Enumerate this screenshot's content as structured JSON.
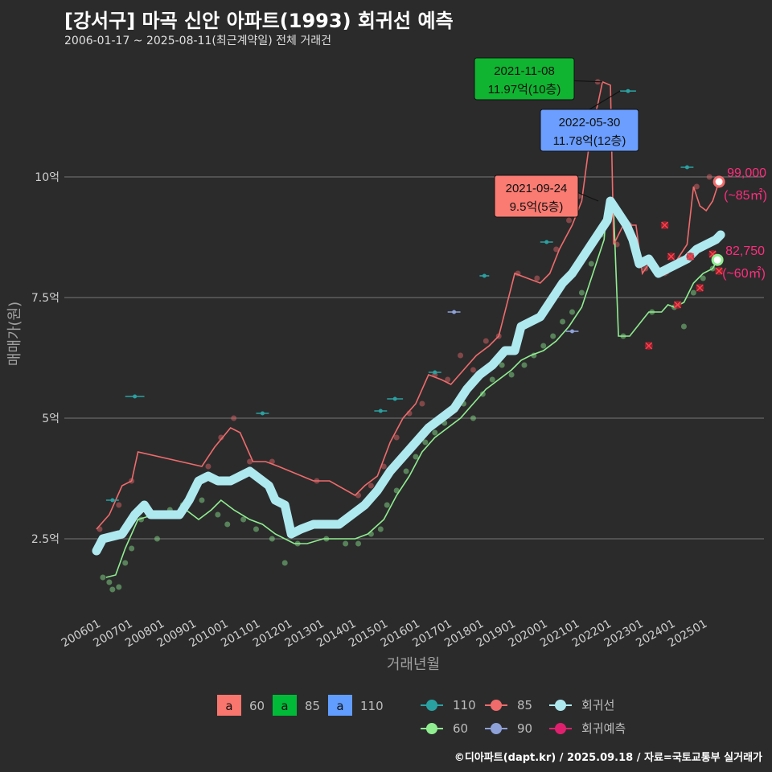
{
  "title": "[강서구] 마곡 신안 아파트(1993) 회귀선 예측",
  "subtitle": "2006-01-17 ~ 2025-08-11(최근계약일) 전체 거래건",
  "caption": "©디아파트(dapt.kr) / 2025.09.18 / 자료=국토교통부 실거래가",
  "chart_data": {
    "type": "scatter",
    "xlabel": "거래년월",
    "ylabel": "매매가(원)",
    "xlim": [
      2006.0,
      2025.9
    ],
    "ylim": [
      1.0,
      12.5
    ],
    "y_ticks": [
      {
        "v": 2.5,
        "label": "2.5억"
      },
      {
        "v": 5,
        "label": "5억"
      },
      {
        "v": 7.5,
        "label": "7.5억"
      },
      {
        "v": 10,
        "label": "10억"
      }
    ],
    "x_ticks": [
      {
        "v": 2006.0,
        "label": "200601"
      },
      {
        "v": 2007.0,
        "label": "200701"
      },
      {
        "v": 2008.0,
        "label": "200801"
      },
      {
        "v": 2009.0,
        "label": "200901"
      },
      {
        "v": 2010.0,
        "label": "201001"
      },
      {
        "v": 2011.0,
        "label": "201101"
      },
      {
        "v": 2012.0,
        "label": "201201"
      },
      {
        "v": 2013.0,
        "label": "201301"
      },
      {
        "v": 2014.0,
        "label": "201401"
      },
      {
        "v": 2015.0,
        "label": "201501"
      },
      {
        "v": 2016.0,
        "label": "201601"
      },
      {
        "v": 2017.0,
        "label": "201701"
      },
      {
        "v": 2018.0,
        "label": "201801"
      },
      {
        "v": 2019.0,
        "label": "201901"
      },
      {
        "v": 2020.0,
        "label": "202001"
      },
      {
        "v": 2021.0,
        "label": "202101"
      },
      {
        "v": 2022.0,
        "label": "202201"
      },
      {
        "v": 2023.0,
        "label": "202301"
      },
      {
        "v": 2024.0,
        "label": "202401"
      },
      {
        "v": 2025.0,
        "label": "202501"
      }
    ],
    "series": [
      {
        "name": "60",
        "color": "#90ee90",
        "type": "line",
        "points": [
          [
            2006.3,
            1.7
          ],
          [
            2006.6,
            1.75
          ],
          [
            2006.9,
            2.3
          ],
          [
            2007.3,
            2.9
          ],
          [
            2007.8,
            3.0
          ],
          [
            2008.3,
            3.0
          ],
          [
            2008.8,
            3.1
          ],
          [
            2009.2,
            2.9
          ],
          [
            2009.6,
            3.1
          ],
          [
            2009.9,
            3.3
          ],
          [
            2010.3,
            3.1
          ],
          [
            2010.8,
            2.9
          ],
          [
            2011.2,
            2.8
          ],
          [
            2011.6,
            2.6
          ],
          [
            2011.9,
            2.5
          ],
          [
            2012.2,
            2.4
          ],
          [
            2012.6,
            2.4
          ],
          [
            2013.1,
            2.5
          ],
          [
            2013.6,
            2.5
          ],
          [
            2014.1,
            2.5
          ],
          [
            2014.5,
            2.6
          ],
          [
            2015.0,
            2.9
          ],
          [
            2015.4,
            3.4
          ],
          [
            2015.8,
            3.8
          ],
          [
            2016.2,
            4.3
          ],
          [
            2016.6,
            4.6
          ],
          [
            2017.0,
            4.8
          ],
          [
            2017.4,
            5.0
          ],
          [
            2017.8,
            5.3
          ],
          [
            2018.2,
            5.6
          ],
          [
            2018.6,
            5.8
          ],
          [
            2019.0,
            6.0
          ],
          [
            2019.3,
            6.2
          ],
          [
            2019.6,
            6.3
          ],
          [
            2020.0,
            6.4
          ],
          [
            2020.4,
            6.6
          ],
          [
            2020.8,
            6.9
          ],
          [
            2021.2,
            7.3
          ],
          [
            2021.6,
            8.1
          ],
          [
            2021.9,
            8.7
          ],
          [
            2022.0,
            9.5
          ],
          [
            2022.2,
            9.3
          ],
          [
            2022.35,
            6.7
          ],
          [
            2022.7,
            6.7
          ],
          [
            2023.3,
            7.2
          ],
          [
            2023.7,
            7.2
          ],
          [
            2023.9,
            7.35
          ],
          [
            2024.1,
            7.3
          ],
          [
            2024.4,
            7.4
          ],
          [
            2024.7,
            7.8
          ],
          [
            2025.0,
            8.0
          ],
          [
            2025.3,
            8.1
          ],
          [
            2025.45,
            8.28
          ]
        ]
      },
      {
        "name": "85",
        "color": "#f06b6b",
        "type": "line",
        "points": [
          [
            2006.0,
            2.7
          ],
          [
            2006.4,
            3.0
          ],
          [
            2006.8,
            3.6
          ],
          [
            2007.1,
            3.7
          ],
          [
            2007.3,
            4.3
          ],
          [
            2009.3,
            4.0
          ],
          [
            2009.7,
            4.4
          ],
          [
            2010.2,
            4.8
          ],
          [
            2010.5,
            4.7
          ],
          [
            2010.9,
            4.1
          ],
          [
            2011.3,
            4.1
          ],
          [
            2011.7,
            4.0
          ],
          [
            2012.8,
            3.7
          ],
          [
            2013.3,
            3.7
          ],
          [
            2014.1,
            3.4
          ],
          [
            2014.4,
            3.6
          ],
          [
            2014.8,
            3.8
          ],
          [
            2015.2,
            4.5
          ],
          [
            2015.6,
            5.0
          ],
          [
            2016.0,
            5.3
          ],
          [
            2016.4,
            5.9
          ],
          [
            2016.8,
            5.8
          ],
          [
            2017.1,
            5.7
          ],
          [
            2017.5,
            6.0
          ],
          [
            2017.9,
            6.3
          ],
          [
            2018.3,
            6.5
          ],
          [
            2018.6,
            6.7
          ],
          [
            2019.1,
            8.0
          ],
          [
            2019.5,
            7.9
          ],
          [
            2019.9,
            7.8
          ],
          [
            2020.2,
            8.0
          ],
          [
            2020.5,
            8.5
          ],
          [
            2020.9,
            9.0
          ],
          [
            2021.2,
            9.5
          ],
          [
            2021.5,
            11.0
          ],
          [
            2021.7,
            11.5
          ],
          [
            2021.85,
            11.97
          ],
          [
            2022.1,
            11.9
          ],
          [
            2022.2,
            8.6
          ],
          [
            2022.5,
            9.0
          ],
          [
            2022.9,
            9.0
          ],
          [
            2023.1,
            8.0
          ],
          [
            2023.3,
            8.2
          ],
          [
            2023.6,
            8.0
          ],
          [
            2023.9,
            8.0
          ],
          [
            2024.2,
            8.3
          ],
          [
            2024.5,
            8.6
          ],
          [
            2024.7,
            9.8
          ],
          [
            2024.9,
            9.4
          ],
          [
            2025.1,
            9.3
          ],
          [
            2025.3,
            9.5
          ],
          [
            2025.5,
            9.9
          ]
        ]
      },
      {
        "name": "110",
        "color": "#2aa1a1",
        "type": "step",
        "segments": [
          [
            2006.3,
            3.3,
            2006.7,
            3.3
          ],
          [
            2006.9,
            5.45,
            2007.5,
            5.45
          ],
          [
            2011.0,
            5.1,
            2011.4,
            5.1
          ],
          [
            2014.7,
            5.15,
            2015.1,
            5.15
          ],
          [
            2015.1,
            5.4,
            2015.6,
            5.4
          ],
          [
            2016.4,
            5.95,
            2016.8,
            5.95
          ],
          [
            2018.0,
            7.95,
            2018.3,
            7.95
          ],
          [
            2019.9,
            8.65,
            2020.3,
            8.65
          ],
          [
            2022.4,
            11.78,
            2022.9,
            11.78
          ],
          [
            2024.3,
            10.2,
            2024.7,
            10.2
          ]
        ]
      },
      {
        "name": "90",
        "color": "#8ea1d8",
        "type": "step",
        "segments": [
          [
            2017.0,
            7.2,
            2017.4,
            7.2
          ],
          [
            2020.7,
            6.8,
            2021.1,
            6.8
          ]
        ]
      }
    ],
    "regression": {
      "name": "회귀선",
      "color": "#aee9ef",
      "points": [
        [
          2006.0,
          2.25
        ],
        [
          2006.2,
          2.5
        ],
        [
          2006.8,
          2.6
        ],
        [
          2007.2,
          3.0
        ],
        [
          2007.5,
          3.2
        ],
        [
          2007.7,
          3.0
        ],
        [
          2008.2,
          3.0
        ],
        [
          2008.6,
          3.0
        ],
        [
          2008.9,
          3.3
        ],
        [
          2009.2,
          3.7
        ],
        [
          2009.5,
          3.8
        ],
        [
          2009.8,
          3.7
        ],
        [
          2010.2,
          3.7
        ],
        [
          2010.5,
          3.8
        ],
        [
          2010.8,
          3.9
        ],
        [
          2011.1,
          3.75
        ],
        [
          2011.4,
          3.6
        ],
        [
          2011.6,
          3.3
        ],
        [
          2011.9,
          3.2
        ],
        [
          2012.1,
          2.6
        ],
        [
          2012.4,
          2.7
        ],
        [
          2012.8,
          2.8
        ],
        [
          2013.2,
          2.8
        ],
        [
          2013.6,
          2.8
        ],
        [
          2014.0,
          3.0
        ],
        [
          2014.4,
          3.2
        ],
        [
          2014.8,
          3.5
        ],
        [
          2015.2,
          3.9
        ],
        [
          2015.6,
          4.2
        ],
        [
          2016.0,
          4.5
        ],
        [
          2016.4,
          4.8
        ],
        [
          2016.8,
          5.0
        ],
        [
          2017.2,
          5.2
        ],
        [
          2017.6,
          5.6
        ],
        [
          2018.0,
          5.9
        ],
        [
          2018.4,
          6.1
        ],
        [
          2018.8,
          6.4
        ],
        [
          2019.1,
          6.4
        ],
        [
          2019.3,
          6.9
        ],
        [
          2019.6,
          7.0
        ],
        [
          2019.9,
          7.1
        ],
        [
          2020.2,
          7.4
        ],
        [
          2020.6,
          7.8
        ],
        [
          2020.9,
          8.0
        ],
        [
          2021.2,
          8.3
        ],
        [
          2021.5,
          8.6
        ],
        [
          2021.8,
          8.9
        ],
        [
          2022.0,
          9.1
        ],
        [
          2022.1,
          9.5
        ],
        [
          2022.3,
          9.3
        ],
        [
          2022.6,
          9.0
        ],
        [
          2022.8,
          8.7
        ],
        [
          2023.0,
          8.2
        ],
        [
          2023.3,
          8.3
        ],
        [
          2023.6,
          8.0
        ],
        [
          2023.9,
          8.1
        ],
        [
          2024.2,
          8.2
        ],
        [
          2024.5,
          8.3
        ],
        [
          2024.8,
          8.5
        ],
        [
          2025.1,
          8.6
        ],
        [
          2025.4,
          8.7
        ],
        [
          2025.55,
          8.8
        ]
      ]
    },
    "scatter_points_60": [
      [
        2006.2,
        1.7
      ],
      [
        2006.4,
        1.6
      ],
      [
        2006.5,
        1.45
      ],
      [
        2006.7,
        1.5
      ],
      [
        2006.9,
        2.0
      ],
      [
        2007.1,
        2.3
      ],
      [
        2007.4,
        2.9
      ],
      [
        2007.9,
        2.5
      ],
      [
        2008.3,
        3.1
      ],
      [
        2008.7,
        3.2
      ],
      [
        2009.3,
        3.3
      ],
      [
        2009.8,
        3.0
      ],
      [
        2010.1,
        2.8
      ],
      [
        2010.6,
        2.9
      ],
      [
        2011.0,
        2.7
      ],
      [
        2011.5,
        2.5
      ],
      [
        2011.9,
        2.0
      ],
      [
        2012.3,
        2.4
      ],
      [
        2013.2,
        2.5
      ],
      [
        2013.8,
        2.4
      ],
      [
        2014.2,
        2.4
      ],
      [
        2014.6,
        2.6
      ],
      [
        2014.9,
        2.7
      ],
      [
        2015.1,
        3.2
      ],
      [
        2015.4,
        3.5
      ],
      [
        2015.7,
        3.9
      ],
      [
        2016.0,
        4.2
      ],
      [
        2016.3,
        4.5
      ],
      [
        2016.6,
        4.7
      ],
      [
        2016.9,
        4.9
      ],
      [
        2017.2,
        5.2
      ],
      [
        2017.5,
        5.3
      ],
      [
        2017.8,
        5.0
      ],
      [
        2018.1,
        5.5
      ],
      [
        2018.4,
        5.8
      ],
      [
        2018.7,
        6.1
      ],
      [
        2019.0,
        5.9
      ],
      [
        2019.4,
        6.1
      ],
      [
        2019.7,
        6.3
      ],
      [
        2020.0,
        6.5
      ],
      [
        2020.3,
        6.7
      ],
      [
        2020.6,
        7.0
      ],
      [
        2020.9,
        7.2
      ],
      [
        2021.2,
        7.6
      ],
      [
        2021.5,
        8.2
      ],
      [
        2021.8,
        8.8
      ],
      [
        2022.2,
        9.3
      ],
      [
        2022.5,
        6.7
      ],
      [
        2023.4,
        7.2
      ],
      [
        2024.1,
        7.3
      ],
      [
        2024.4,
        6.9
      ],
      [
        2024.7,
        7.6
      ],
      [
        2025.0,
        7.9
      ],
      [
        2025.3,
        8.1
      ]
    ],
    "scatter_points_85": [
      [
        2006.1,
        2.7
      ],
      [
        2006.7,
        3.2
      ],
      [
        2007.1,
        3.7
      ],
      [
        2009.5,
        4.0
      ],
      [
        2009.9,
        4.6
      ],
      [
        2010.3,
        5.0
      ],
      [
        2010.8,
        4.1
      ],
      [
        2011.5,
        4.1
      ],
      [
        2012.9,
        3.7
      ],
      [
        2014.2,
        3.4
      ],
      [
        2014.6,
        3.6
      ],
      [
        2015.0,
        4.0
      ],
      [
        2015.4,
        4.6
      ],
      [
        2015.8,
        5.1
      ],
      [
        2016.2,
        5.3
      ],
      [
        2016.6,
        5.9
      ],
      [
        2017.0,
        5.8
      ],
      [
        2017.4,
        6.3
      ],
      [
        2017.8,
        6.0
      ],
      [
        2018.2,
        6.6
      ],
      [
        2018.6,
        6.7
      ],
      [
        2019.2,
        8.0
      ],
      [
        2019.8,
        7.9
      ],
      [
        2020.4,
        8.5
      ],
      [
        2020.8,
        9.1
      ],
      [
        2021.1,
        9.6
      ],
      [
        2021.4,
        11.0
      ],
      [
        2021.7,
        11.97
      ],
      [
        2022.3,
        8.6
      ],
      [
        2022.7,
        9.0
      ],
      [
        2023.2,
        8.1
      ],
      [
        2023.8,
        8.0
      ],
      [
        2024.3,
        8.3
      ],
      [
        2024.8,
        9.8
      ],
      [
        2025.2,
        10.0
      ],
      [
        2025.5,
        9.9
      ]
    ],
    "forecast_points": [
      [
        2023.3,
        6.5
      ],
      [
        2023.8,
        9.0
      ],
      [
        2024.0,
        8.35
      ],
      [
        2024.2,
        7.35
      ],
      [
        2024.6,
        8.35
      ],
      [
        2024.9,
        7.7
      ],
      [
        2025.3,
        8.4
      ],
      [
        2025.5,
        8.05
      ]
    ],
    "annotations": [
      {
        "date": "2021-11-08",
        "price": "11.97억(10층)",
        "x": 2021.85,
        "y": 11.97,
        "color": "#10b431"
      },
      {
        "date": "2022-05-30",
        "price": "11.78억(12층)",
        "x": 2022.4,
        "y": 11.78,
        "color": "#6b9eff"
      },
      {
        "date": "2021-09-24",
        "price": "9.5억(5층)",
        "x": 2021.72,
        "y": 9.5,
        "color": "#f97b72"
      }
    ],
    "end_labels": [
      {
        "value": "99,000",
        "area": "(~85㎡)",
        "x": 2025.5,
        "y": 9.9,
        "color": "#f06b6b"
      },
      {
        "value": "82,750",
        "area": "(~60㎡)",
        "x": 2025.45,
        "y": 8.28,
        "color": "#90ee90"
      }
    ],
    "legend_fill": [
      {
        "label": "60",
        "color": "#f8766d",
        "glyph": "a"
      },
      {
        "label": "85",
        "color": "#00ba38",
        "glyph": "a"
      },
      {
        "label": "110",
        "color": "#619cff",
        "glyph": "a"
      }
    ],
    "legend_marks": [
      {
        "label": "110",
        "color": "#2aa1a1"
      },
      {
        "label": "85",
        "color": "#f06b6b"
      },
      {
        "label": "회귀선",
        "color": "#aee9ef"
      },
      {
        "label": "60",
        "color": "#90ee90"
      },
      {
        "label": "90",
        "color": "#8ea1d8"
      },
      {
        "label": "회귀예측",
        "color": "#e0206e"
      }
    ]
  }
}
